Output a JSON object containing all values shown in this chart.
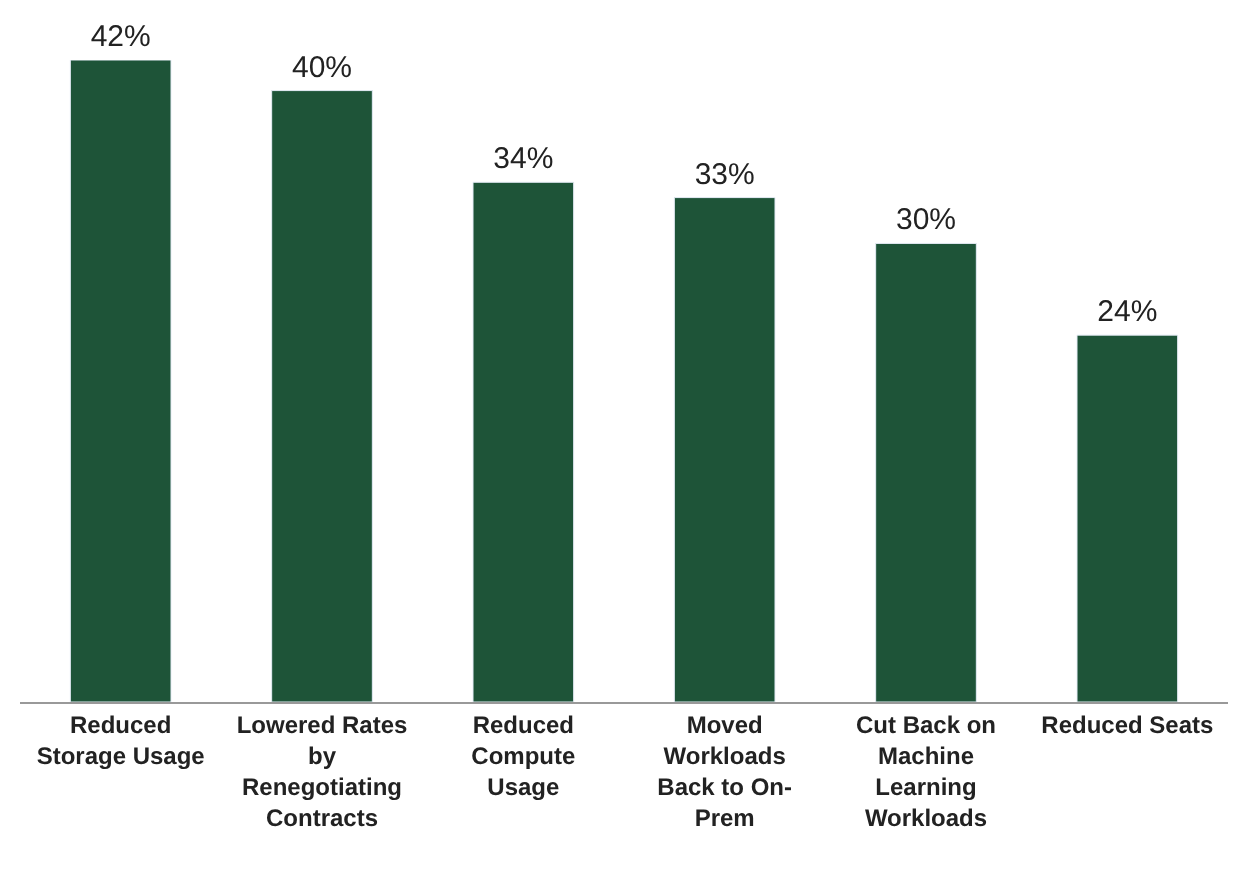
{
  "chart_data": {
    "type": "bar",
    "categories": [
      "Reduced\nStorage Usage",
      "Lowered Rates\nby\nRenegotiating\nContracts",
      "Reduced\nCompute\nUsage",
      "Moved\nWorkloads\nBack to On-\nPrem",
      "Cut Back on\nMachine\nLearning\nWorkloads",
      "Reduced Seats"
    ],
    "values": [
      42,
      40,
      34,
      33,
      30,
      24
    ],
    "value_labels": [
      "42%",
      "40%",
      "34%",
      "33%",
      "30%",
      "24%"
    ],
    "color": "#1e5438",
    "legend": false
  }
}
